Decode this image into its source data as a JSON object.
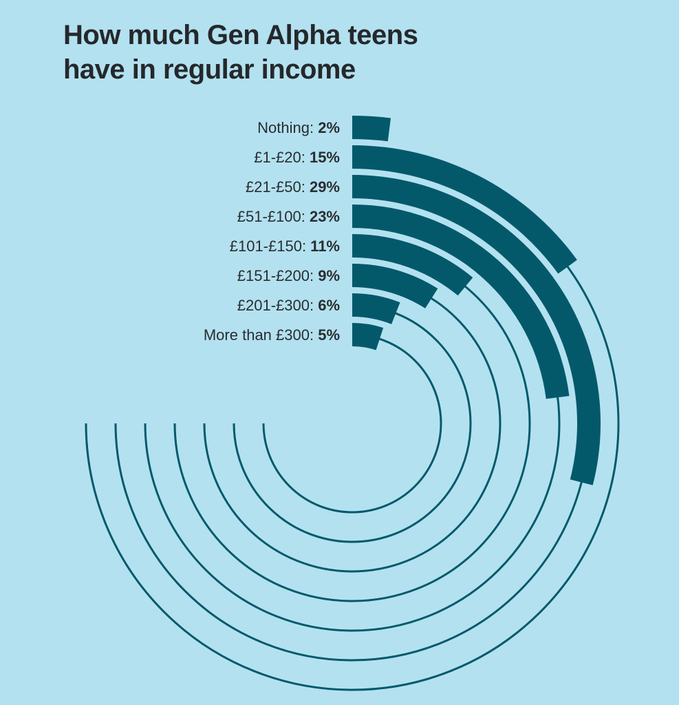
{
  "title_line1": "How much Gen Alpha teens",
  "title_line2": "have in regular income",
  "colors": {
    "background": "#b3e1f0",
    "bar": "#03596a",
    "track": "#03596a",
    "text": "#25282b"
  },
  "chart_data": {
    "type": "radial-bar",
    "title": "How much Gen Alpha teens have in regular income",
    "unit": "%",
    "full_circle_value": 100,
    "categories": [
      "Nothing",
      "£1-£20",
      "£21-£50",
      "£51-£100",
      "£101-£150",
      "£151-£200",
      "£201-£300",
      "More than £300"
    ],
    "values": [
      2,
      15,
      29,
      23,
      11,
      9,
      6,
      5
    ],
    "value_labels": [
      "2%",
      "15%",
      "29%",
      "23%",
      "11%",
      "9%",
      "6%",
      "5%"
    ],
    "track_shown": [
      false,
      true,
      true,
      true,
      true,
      true,
      true,
      true
    ]
  }
}
